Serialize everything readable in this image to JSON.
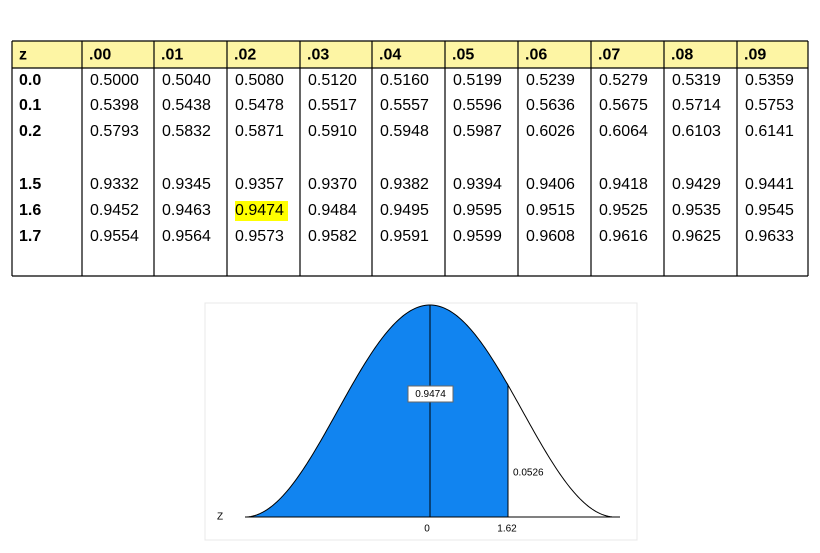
{
  "table": {
    "header": [
      "z",
      ".00",
      ".01",
      ".02",
      ".03",
      ".04",
      ".05",
      ".06",
      ".07",
      ".08",
      ".09"
    ],
    "rows": [
      [
        "0.0",
        "0.5000",
        "0.5040",
        "0.5080",
        "0.5120",
        "0.5160",
        "0.5199",
        "0.5239",
        "0.5279",
        "0.5319",
        "0.5359"
      ],
      [
        "0.1",
        "0.5398",
        "0.5438",
        "0.5478",
        "0.5517",
        "0.5557",
        "0.5596",
        "0.5636",
        "0.5675",
        "0.5714",
        "0.5753"
      ],
      [
        "0.2",
        "0.5793",
        "0.5832",
        "0.5871",
        "0.5910",
        "0.5948",
        "0.5987",
        "0.6026",
        "0.6064",
        "0.6103",
        "0.6141"
      ],
      [
        "1.5",
        "0.9332",
        "0.9345",
        "0.9357",
        "0.9370",
        "0.9382",
        "0.9394",
        "0.9406",
        "0.9418",
        "0.9429",
        "0.9441"
      ],
      [
        "1.6",
        "0.9452",
        "0.9463",
        "0.9474",
        "0.9484",
        "0.9495",
        "0.9595",
        "0.9515",
        "0.9525",
        "0.9535",
        "0.9545"
      ],
      [
        "1.7",
        "0.9554",
        "0.9564",
        "0.9573",
        "0.9582",
        "0.9591",
        "0.9599",
        "0.9608",
        "0.9616",
        "0.9625",
        "0.9633"
      ]
    ],
    "highlight": [
      4,
      3
    ]
  },
  "diagram": {
    "area_left": "0.9474",
    "area_right": "0.0526",
    "axis_label": "Z",
    "tick_mean": "0",
    "tick_z": "1.62"
  }
}
